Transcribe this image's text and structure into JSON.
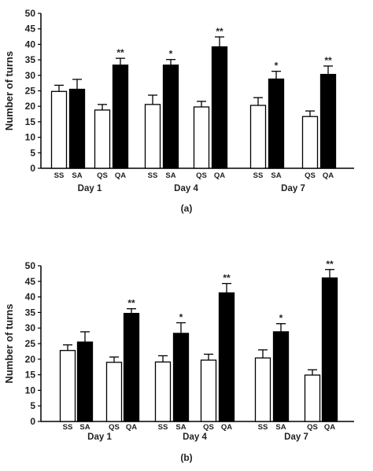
{
  "chart_data": [
    {
      "type": "bar",
      "panel_label": "(a)",
      "ylabel": "Number of turns",
      "ylim": [
        0,
        50
      ],
      "yticks": [
        0,
        5,
        10,
        15,
        20,
        25,
        30,
        35,
        40,
        45,
        50
      ],
      "groups": [
        "Day 1",
        "Day 4",
        "Day 7"
      ],
      "categories": [
        "SS",
        "SA",
        "QS",
        "QA"
      ],
      "bars": [
        [
          {
            "value": 24.8,
            "err": 2.0,
            "sig": ""
          },
          {
            "value": 25.5,
            "err": 3.2,
            "sig": ""
          },
          {
            "value": 18.8,
            "err": 1.8,
            "sig": ""
          },
          {
            "value": 33.3,
            "err": 2.2,
            "sig": "**"
          }
        ],
        [
          {
            "value": 20.6,
            "err": 3.0,
            "sig": ""
          },
          {
            "value": 33.3,
            "err": 1.8,
            "sig": "*"
          },
          {
            "value": 19.8,
            "err": 1.8,
            "sig": ""
          },
          {
            "value": 39.2,
            "err": 3.2,
            "sig": "**"
          }
        ],
        [
          {
            "value": 20.3,
            "err": 2.5,
            "sig": ""
          },
          {
            "value": 28.8,
            "err": 2.5,
            "sig": "*"
          },
          {
            "value": 16.7,
            "err": 1.8,
            "sig": ""
          },
          {
            "value": 30.3,
            "err": 2.7,
            "sig": "**"
          }
        ]
      ],
      "colors": {
        "SS": "#ffffff",
        "SA": "#000000",
        "QS": "#ffffff",
        "QA": "#000000"
      }
    },
    {
      "type": "bar",
      "panel_label": "(b)",
      "ylabel": "Number of turns",
      "ylim": [
        0,
        50
      ],
      "yticks": [
        0,
        5,
        10,
        15,
        20,
        25,
        30,
        35,
        40,
        45,
        50
      ],
      "groups": [
        "Day 1",
        "Day 4",
        "Day 7"
      ],
      "categories": [
        "SS",
        "SA",
        "QS",
        "QA"
      ],
      "bars": [
        [
          {
            "value": 22.8,
            "err": 1.8,
            "sig": ""
          },
          {
            "value": 25.5,
            "err": 3.3,
            "sig": ""
          },
          {
            "value": 19.0,
            "err": 1.7,
            "sig": ""
          },
          {
            "value": 34.7,
            "err": 1.5,
            "sig": "**"
          }
        ],
        [
          {
            "value": 19.1,
            "err": 2.0,
            "sig": ""
          },
          {
            "value": 28.3,
            "err": 3.4,
            "sig": "*"
          },
          {
            "value": 19.7,
            "err": 1.9,
            "sig": ""
          },
          {
            "value": 41.3,
            "err": 3.0,
            "sig": "**"
          }
        ],
        [
          {
            "value": 20.4,
            "err": 2.6,
            "sig": ""
          },
          {
            "value": 28.8,
            "err": 2.6,
            "sig": "*"
          },
          {
            "value": 14.9,
            "err": 1.7,
            "sig": ""
          },
          {
            "value": 46.1,
            "err": 2.7,
            "sig": "**"
          }
        ]
      ],
      "colors": {
        "SS": "#ffffff",
        "SA": "#000000",
        "QS": "#ffffff",
        "QA": "#000000"
      }
    }
  ]
}
